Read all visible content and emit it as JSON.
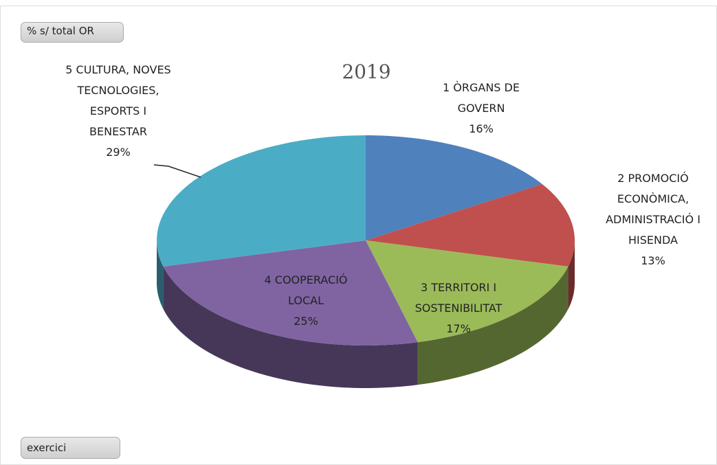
{
  "chart_data": {
    "type": "pie",
    "title": "2019",
    "categories": [
      "1 ÒRGANS DE GOVERN",
      "2 PROMOCIÓ ECONÒMICA, ADMINISTRACIÓ I HISENDA",
      "3 TERRITORI I SOSTENIBILITAT",
      "4 COOPERACIÓ LOCAL",
      "5 CULTURA, NOVES TECNOLOGIES, ESPORTS I BENESTAR"
    ],
    "values": [
      16,
      13,
      17,
      25,
      29
    ],
    "value_labels": [
      "16%",
      "13%",
      "17%",
      "25%",
      "29%"
    ],
    "colors": [
      "#4f81bd",
      "#c0504d",
      "#9bbb59",
      "#8064a2",
      "#4bacc6"
    ]
  },
  "buttons": {
    "field": "% s/ total OR",
    "filter": "exercici"
  }
}
